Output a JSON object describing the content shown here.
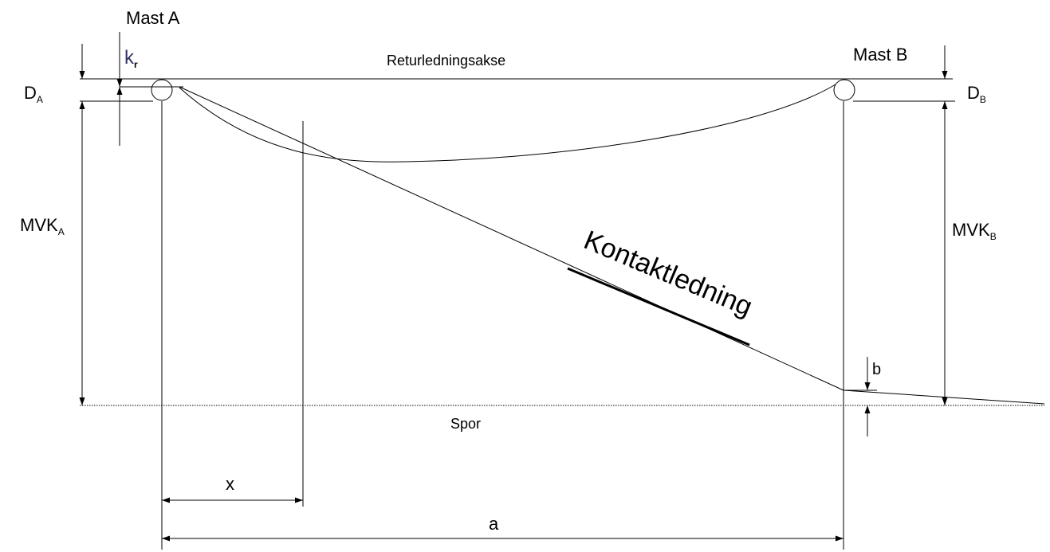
{
  "labels": {
    "mast_a": "Mast A",
    "mast_b": "Mast B",
    "k_r": {
      "main": "k",
      "sub": "r"
    },
    "axis": "Returledningsakse",
    "d_a": {
      "main": "D",
      "sub": "A"
    },
    "d_b": {
      "main": "D",
      "sub": "B"
    },
    "mvk_a": {
      "main": "MVK",
      "sub": "A"
    },
    "mvk_b": {
      "main": "MVK",
      "sub": "B"
    },
    "contact_wire": "Kontaktledning",
    "b": "b",
    "track": "Spor",
    "x": "x",
    "a": "a"
  }
}
